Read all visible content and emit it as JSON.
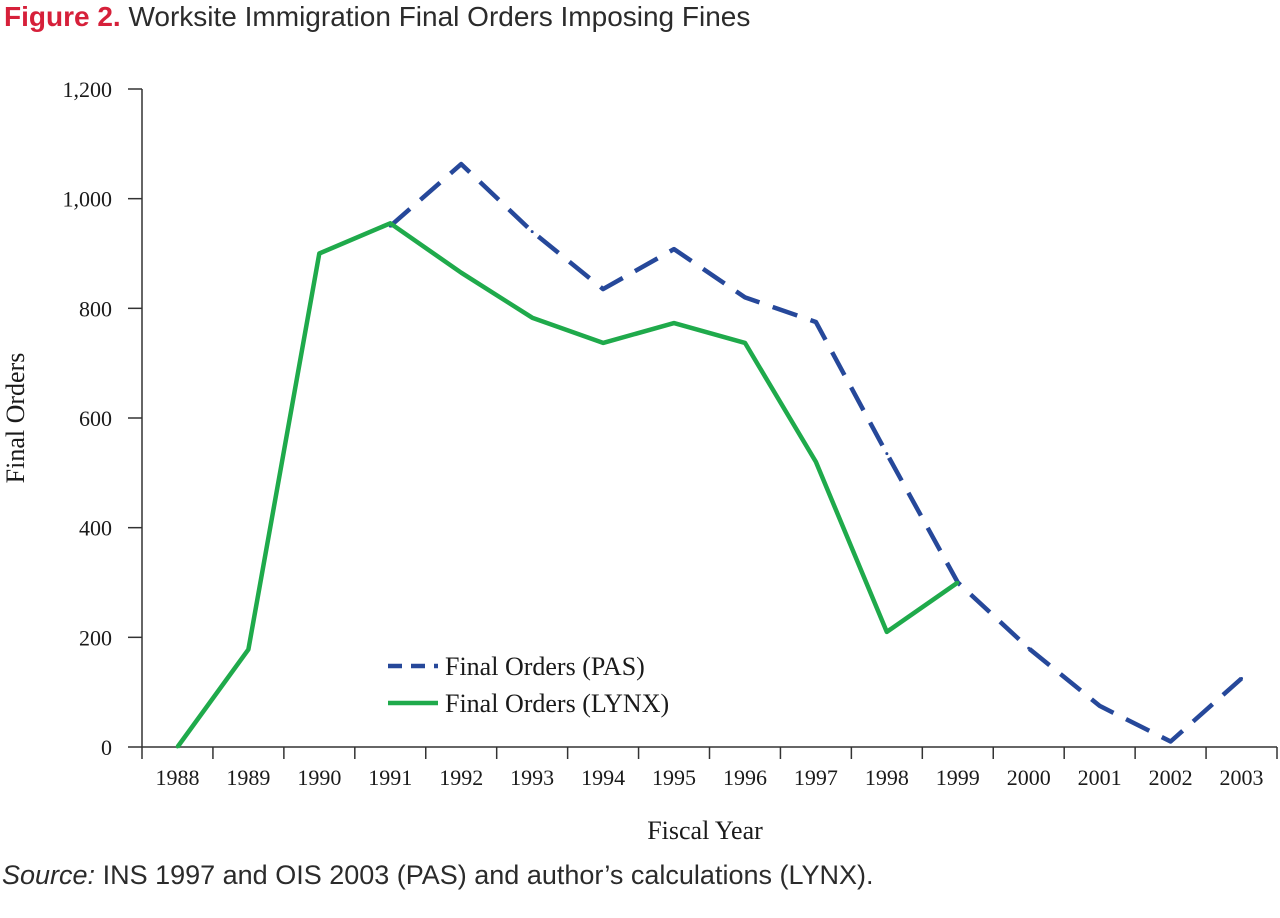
{
  "figure": {
    "label": "Figure 2.",
    "title": " Worksite Immigration Final Orders Imposing Fines"
  },
  "source": {
    "label": "Source:",
    "text": " INS 1997 and OIS 2003 (PAS) and author’s calculations (LYNX)."
  },
  "colors": {
    "pas": "#26489a",
    "lynx": "#1faa4b",
    "accent": "#d6203a"
  },
  "chart_data": {
    "type": "line",
    "xlabel": "Fiscal Year",
    "ylabel": "Final Orders",
    "ylim": [
      0,
      1200
    ],
    "yticks": [
      0,
      200,
      400,
      600,
      800,
      1000,
      1200
    ],
    "ytick_labels": [
      "0",
      "200",
      "400",
      "600",
      "800",
      "1,000",
      "1,200"
    ],
    "categories": [
      "1988",
      "1989",
      "1990",
      "1991",
      "1992",
      "1993",
      "1994",
      "1995",
      "1996",
      "1997",
      "1998",
      "1999",
      "2000",
      "2001",
      "2002",
      "2003"
    ],
    "legend_position": "lower-center",
    "grid": false,
    "series": [
      {
        "name": "Final Orders (PAS)",
        "style": "dashed",
        "x": [
          "1991",
          "1992",
          "1993",
          "1994",
          "1995",
          "1996",
          "1997",
          "1998",
          "1999",
          "2000",
          "2001",
          "2002",
          "2003"
        ],
        "values": [
          950,
          1063,
          940,
          835,
          908,
          820,
          775,
          535,
          300,
          180,
          75,
          10,
          125
        ]
      },
      {
        "name": "Final Orders (LYNX)",
        "style": "solid",
        "x": [
          "1988",
          "1989",
          "1990",
          "1991",
          "1992",
          "1993",
          "1994",
          "1995",
          "1996",
          "1997",
          "1998",
          "1999"
        ],
        "values": [
          0,
          178,
          900,
          955,
          865,
          783,
          737,
          773,
          737,
          520,
          210,
          300
        ]
      }
    ]
  }
}
